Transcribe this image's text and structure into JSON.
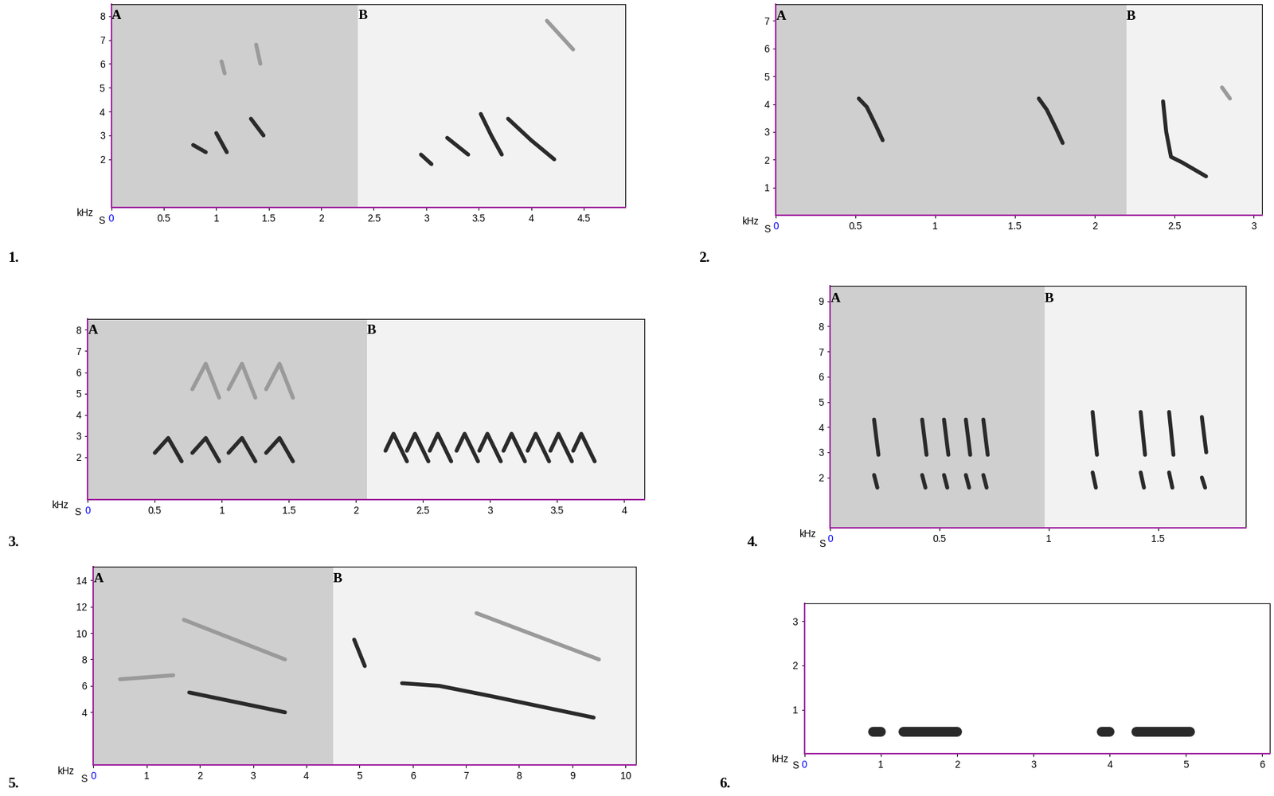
{
  "chart_data": [
    {
      "type": "spectrogram",
      "title": "1.",
      "xlabel": "S",
      "ylabel": "kHz",
      "color": "#2a2a2a",
      "xlim": [
        0,
        4.9
      ],
      "xticks": [
        0,
        0.5,
        1,
        1.5,
        2,
        2.5,
        3,
        3.5,
        4,
        4.5
      ],
      "ylim": [
        0,
        8.5
      ],
      "yticks": [
        2,
        3,
        4,
        5,
        6,
        7,
        8
      ],
      "sections": [
        {
          "label": "A",
          "xlim": [
            0,
            2.35
          ]
        },
        {
          "label": "B",
          "xlim": [
            2.35,
            4.9
          ]
        }
      ],
      "traces": [
        {
          "x": [
            0.78,
            0.9
          ],
          "y": [
            2.6,
            2.3
          ]
        },
        {
          "x": [
            1.0,
            1.1
          ],
          "y": [
            3.1,
            2.3
          ]
        },
        {
          "x": [
            1.33,
            1.45
          ],
          "y": [
            3.7,
            3.0
          ]
        },
        {
          "x": [
            1.05,
            1.08
          ],
          "y": [
            6.1,
            5.6
          ],
          "color": "#9a9a9a"
        },
        {
          "x": [
            1.38,
            1.42
          ],
          "y": [
            6.8,
            6.0
          ],
          "color": "#9a9a9a"
        },
        {
          "x": [
            2.95,
            3.05
          ],
          "y": [
            2.2,
            1.8
          ]
        },
        {
          "x": [
            3.2,
            3.4
          ],
          "y": [
            2.9,
            2.2
          ]
        },
        {
          "x": [
            3.52,
            3.62,
            3.72
          ],
          "y": [
            3.9,
            3.0,
            2.2
          ]
        },
        {
          "x": [
            3.78,
            4.0,
            4.22
          ],
          "y": [
            3.7,
            2.8,
            2.0
          ]
        },
        {
          "x": [
            4.15,
            4.4
          ],
          "y": [
            7.8,
            6.6
          ],
          "color": "#9a9a9a"
        }
      ]
    },
    {
      "type": "spectrogram",
      "title": "2.",
      "xlabel": "S",
      "ylabel": "kHz",
      "color": "#2a2a2a",
      "xlim": [
        0,
        3.05
      ],
      "xticks": [
        0,
        0.5,
        1,
        1.5,
        2,
        2.5,
        3
      ],
      "ylim": [
        0,
        7.6
      ],
      "yticks": [
        1,
        2,
        3,
        4,
        5,
        6,
        7
      ],
      "sections": [
        {
          "label": "A",
          "xlim": [
            0,
            2.2
          ]
        },
        {
          "label": "B",
          "xlim": [
            2.2,
            3.05
          ]
        }
      ],
      "traces": [
        {
          "x": [
            0.52,
            0.57,
            0.63,
            0.67
          ],
          "y": [
            4.2,
            3.9,
            3.2,
            2.7
          ]
        },
        {
          "x": [
            1.65,
            1.7,
            1.76,
            1.8
          ],
          "y": [
            4.2,
            3.8,
            3.1,
            2.6
          ]
        },
        {
          "x": [
            2.43,
            2.45,
            2.48,
            2.55,
            2.7
          ],
          "y": [
            4.1,
            3.0,
            2.1,
            1.9,
            1.4
          ]
        },
        {
          "x": [
            2.8,
            2.85
          ],
          "y": [
            4.6,
            4.2
          ],
          "color": "#9a9a9a"
        }
      ]
    },
    {
      "type": "spectrogram",
      "title": "3.",
      "xlabel": "S",
      "ylabel": "kHz",
      "color": "#2a2a2a",
      "xlim": [
        0,
        4.15
      ],
      "xticks": [
        0,
        0.5,
        1,
        1.5,
        2,
        2.5,
        3,
        3.5,
        4
      ],
      "ylim": [
        0,
        8.5
      ],
      "yticks": [
        2,
        3,
        4,
        5,
        6,
        7,
        8
      ],
      "sections": [
        {
          "label": "A",
          "xlim": [
            0,
            2.08
          ]
        },
        {
          "label": "B",
          "xlim": [
            2.08,
            4.15
          ]
        }
      ],
      "traces": [
        {
          "x": [
            0.5,
            0.6,
            0.7
          ],
          "y": [
            2.2,
            2.9,
            1.8
          ]
        },
        {
          "x": [
            0.78,
            0.88,
            0.98
          ],
          "y": [
            2.2,
            2.9,
            1.8
          ]
        },
        {
          "x": [
            1.05,
            1.15,
            1.25
          ],
          "y": [
            2.2,
            2.9,
            1.8
          ]
        },
        {
          "x": [
            1.33,
            1.43,
            1.53
          ],
          "y": [
            2.2,
            2.9,
            1.8
          ]
        },
        {
          "x": [
            0.78,
            0.88,
            0.98
          ],
          "y": [
            5.2,
            6.4,
            4.8
          ],
          "color": "#9a9a9a"
        },
        {
          "x": [
            1.05,
            1.15,
            1.25
          ],
          "y": [
            5.2,
            6.4,
            4.8
          ],
          "color": "#9a9a9a"
        },
        {
          "x": [
            1.33,
            1.43,
            1.53
          ],
          "y": [
            5.2,
            6.4,
            4.8
          ],
          "color": "#9a9a9a"
        },
        {
          "x": [
            2.22,
            2.28,
            2.38
          ],
          "y": [
            2.3,
            3.1,
            1.8
          ]
        },
        {
          "x": [
            2.38,
            2.44,
            2.54
          ],
          "y": [
            2.3,
            3.1,
            1.8
          ]
        },
        {
          "x": [
            2.55,
            2.61,
            2.71
          ],
          "y": [
            2.3,
            3.1,
            1.8
          ]
        },
        {
          "x": [
            2.75,
            2.81,
            2.91
          ],
          "y": [
            2.3,
            3.1,
            1.8
          ]
        },
        {
          "x": [
            2.92,
            2.98,
            3.08
          ],
          "y": [
            2.3,
            3.1,
            1.8
          ]
        },
        {
          "x": [
            3.1,
            3.16,
            3.26
          ],
          "y": [
            2.3,
            3.1,
            1.8
          ]
        },
        {
          "x": [
            3.28,
            3.34,
            3.44
          ],
          "y": [
            2.3,
            3.1,
            1.8
          ]
        },
        {
          "x": [
            3.45,
            3.51,
            3.61
          ],
          "y": [
            2.3,
            3.1,
            1.8
          ]
        },
        {
          "x": [
            3.62,
            3.68,
            3.78
          ],
          "y": [
            2.3,
            3.1,
            1.8
          ]
        }
      ]
    },
    {
      "type": "spectrogram",
      "title": "4.",
      "xlabel": "S",
      "ylabel": "kHz",
      "color": "#2a2a2a",
      "xlim": [
        0,
        1.9
      ],
      "xticks": [
        0,
        0.5,
        1,
        1.5
      ],
      "ylim": [
        0,
        9.6
      ],
      "yticks": [
        2,
        3,
        4,
        5,
        6,
        7,
        8,
        9
      ],
      "sections": [
        {
          "label": "A",
          "xlim": [
            0,
            0.98
          ]
        },
        {
          "label": "B",
          "xlim": [
            0.98,
            1.9
          ]
        }
      ],
      "traces": [
        {
          "x": [
            0.2,
            0.22
          ],
          "y": [
            4.3,
            2.9
          ]
        },
        {
          "x": [
            0.2,
            0.215
          ],
          "y": [
            2.1,
            1.6
          ]
        },
        {
          "x": [
            0.42,
            0.44
          ],
          "y": [
            4.3,
            2.9
          ]
        },
        {
          "x": [
            0.42,
            0.435
          ],
          "y": [
            2.1,
            1.6
          ]
        },
        {
          "x": [
            0.52,
            0.54
          ],
          "y": [
            4.3,
            2.9
          ]
        },
        {
          "x": [
            0.52,
            0.535
          ],
          "y": [
            2.1,
            1.6
          ]
        },
        {
          "x": [
            0.62,
            0.64
          ],
          "y": [
            4.3,
            2.9
          ]
        },
        {
          "x": [
            0.62,
            0.635
          ],
          "y": [
            2.1,
            1.6
          ]
        },
        {
          "x": [
            0.7,
            0.72
          ],
          "y": [
            4.3,
            2.9
          ]
        },
        {
          "x": [
            0.7,
            0.715
          ],
          "y": [
            2.1,
            1.6
          ]
        },
        {
          "x": [
            1.2,
            1.22
          ],
          "y": [
            4.6,
            2.9
          ]
        },
        {
          "x": [
            1.2,
            1.215
          ],
          "y": [
            2.2,
            1.6
          ]
        },
        {
          "x": [
            1.42,
            1.44
          ],
          "y": [
            4.6,
            2.9
          ]
        },
        {
          "x": [
            1.42,
            1.435
          ],
          "y": [
            2.2,
            1.6
          ]
        },
        {
          "x": [
            1.55,
            1.57
          ],
          "y": [
            4.6,
            2.9
          ]
        },
        {
          "x": [
            1.55,
            1.565
          ],
          "y": [
            2.2,
            1.6
          ]
        },
        {
          "x": [
            1.7,
            1.72
          ],
          "y": [
            4.4,
            3.0
          ]
        },
        {
          "x": [
            1.7,
            1.715
          ],
          "y": [
            2.0,
            1.6
          ]
        }
      ]
    },
    {
      "type": "spectrogram",
      "title": "5.",
      "xlabel": "S",
      "ylabel": "kHz",
      "color": "#2a2a2a",
      "xlim": [
        0,
        10.2
      ],
      "xticks": [
        0,
        1,
        2,
        3,
        4,
        5,
        6,
        7,
        8,
        9,
        10
      ],
      "ylim": [
        0,
        15
      ],
      "yticks": [
        4,
        6,
        8,
        10,
        12,
        14
      ],
      "sections": [
        {
          "label": "A",
          "xlim": [
            0,
            4.5
          ]
        },
        {
          "label": "B",
          "xlim": [
            4.5,
            10.2
          ]
        }
      ],
      "traces": [
        {
          "x": [
            1.8,
            3.6
          ],
          "y": [
            5.5,
            4.0
          ]
        },
        {
          "x": [
            0.5,
            1.5
          ],
          "y": [
            6.5,
            6.8
          ],
          "color": "#9a9a9a"
        },
        {
          "x": [
            1.7,
            3.6
          ],
          "y": [
            11,
            8
          ],
          "color": "#9a9a9a"
        },
        {
          "x": [
            5.8,
            6.5,
            7.5,
            9.4
          ],
          "y": [
            6.2,
            6.0,
            5.2,
            3.6
          ]
        },
        {
          "x": [
            4.9,
            5.1
          ],
          "y": [
            9.5,
            7.5
          ]
        },
        {
          "x": [
            7.2,
            9.5
          ],
          "y": [
            11.5,
            8
          ],
          "color": "#9a9a9a"
        }
      ]
    },
    {
      "type": "spectrogram",
      "title": "6.",
      "xlabel": "S",
      "ylabel": "kHz",
      "color": "#2a2a2a",
      "xlim": [
        0,
        6.1
      ],
      "xticks": [
        0,
        1,
        2,
        3,
        4,
        5,
        6
      ],
      "ylim": [
        0,
        3.4
      ],
      "yticks": [
        1,
        2,
        3
      ],
      "sections": [],
      "traces": [
        {
          "x": [
            0.9,
            1.0
          ],
          "y": [
            0.5,
            0.5
          ]
        },
        {
          "x": [
            1.3,
            2.0
          ],
          "y": [
            0.5,
            0.5
          ]
        },
        {
          "x": [
            3.9,
            4.0
          ],
          "y": [
            0.5,
            0.5
          ]
        },
        {
          "x": [
            4.35,
            5.05
          ],
          "y": [
            0.5,
            0.5
          ]
        }
      ]
    }
  ]
}
